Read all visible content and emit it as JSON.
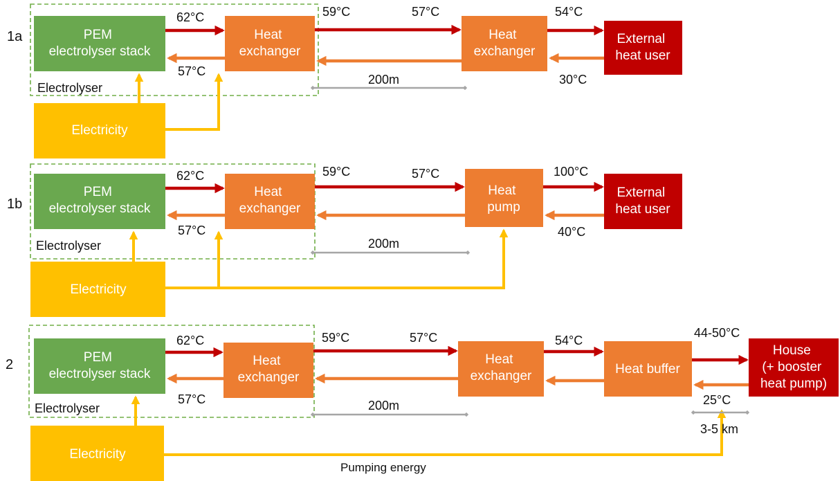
{
  "colors": {
    "stack": "#6aa84f",
    "exchanger": "#ed7d31",
    "user": "#c00000",
    "electricity": "#ffc000",
    "hot_arrow": "#c00000",
    "return_arrow": "#ed7d31",
    "elec_arrow": "#ffc000",
    "dashed": "#70ad47",
    "distance": "#a6a6a6"
  },
  "rows": [
    {
      "id": "1a",
      "label": "1a",
      "stack": [
        "PEM",
        "electrolyser stack"
      ],
      "electrolyser": "Electrolyser",
      "hx1": [
        "Heat",
        "exchanger"
      ],
      "mid": [
        "Heat",
        "exchanger"
      ],
      "user": [
        "External",
        "heat user"
      ],
      "electricity": "Electricity",
      "t_stack_out": "62°C",
      "t_stack_in": "57°C",
      "t_line_start": "59°C",
      "t_line_end": "57°C",
      "t_user_in": "54°C",
      "t_user_return": "30°C",
      "distance": "200m"
    },
    {
      "id": "1b",
      "label": "1b",
      "stack": [
        "PEM",
        "electrolyser stack"
      ],
      "electrolyser": "Electrolyser",
      "hx1": [
        "Heat",
        "exchanger"
      ],
      "mid": [
        "Heat",
        "pump"
      ],
      "user": [
        "External",
        "heat user"
      ],
      "electricity": "Electricity",
      "t_stack_out": "62°C",
      "t_stack_in": "57°C",
      "t_line_start": "59°C",
      "t_line_end": "57°C",
      "t_user_in": "100°C",
      "t_user_return": "40°C",
      "distance": "200m"
    },
    {
      "id": "2",
      "label": "2",
      "stack": [
        "PEM",
        "electrolyser stack"
      ],
      "electrolyser": "Electrolyser",
      "hx1": [
        "Heat",
        "exchanger"
      ],
      "mid": [
        "Heat",
        "exchanger"
      ],
      "buffer": "Heat buffer",
      "user": [
        "House",
        "(+ booster",
        "heat pump)"
      ],
      "electricity": "Electricity",
      "t_stack_out": "62°C",
      "t_stack_in": "57°C",
      "t_line_start": "59°C",
      "t_line_end": "57°C",
      "t_buffer_in": "54°C",
      "t_user_in": "44-50°C",
      "t_user_return": "25°C",
      "distance": "200m",
      "distance2": "3-5 km",
      "pumping": "Pumping energy"
    }
  ]
}
